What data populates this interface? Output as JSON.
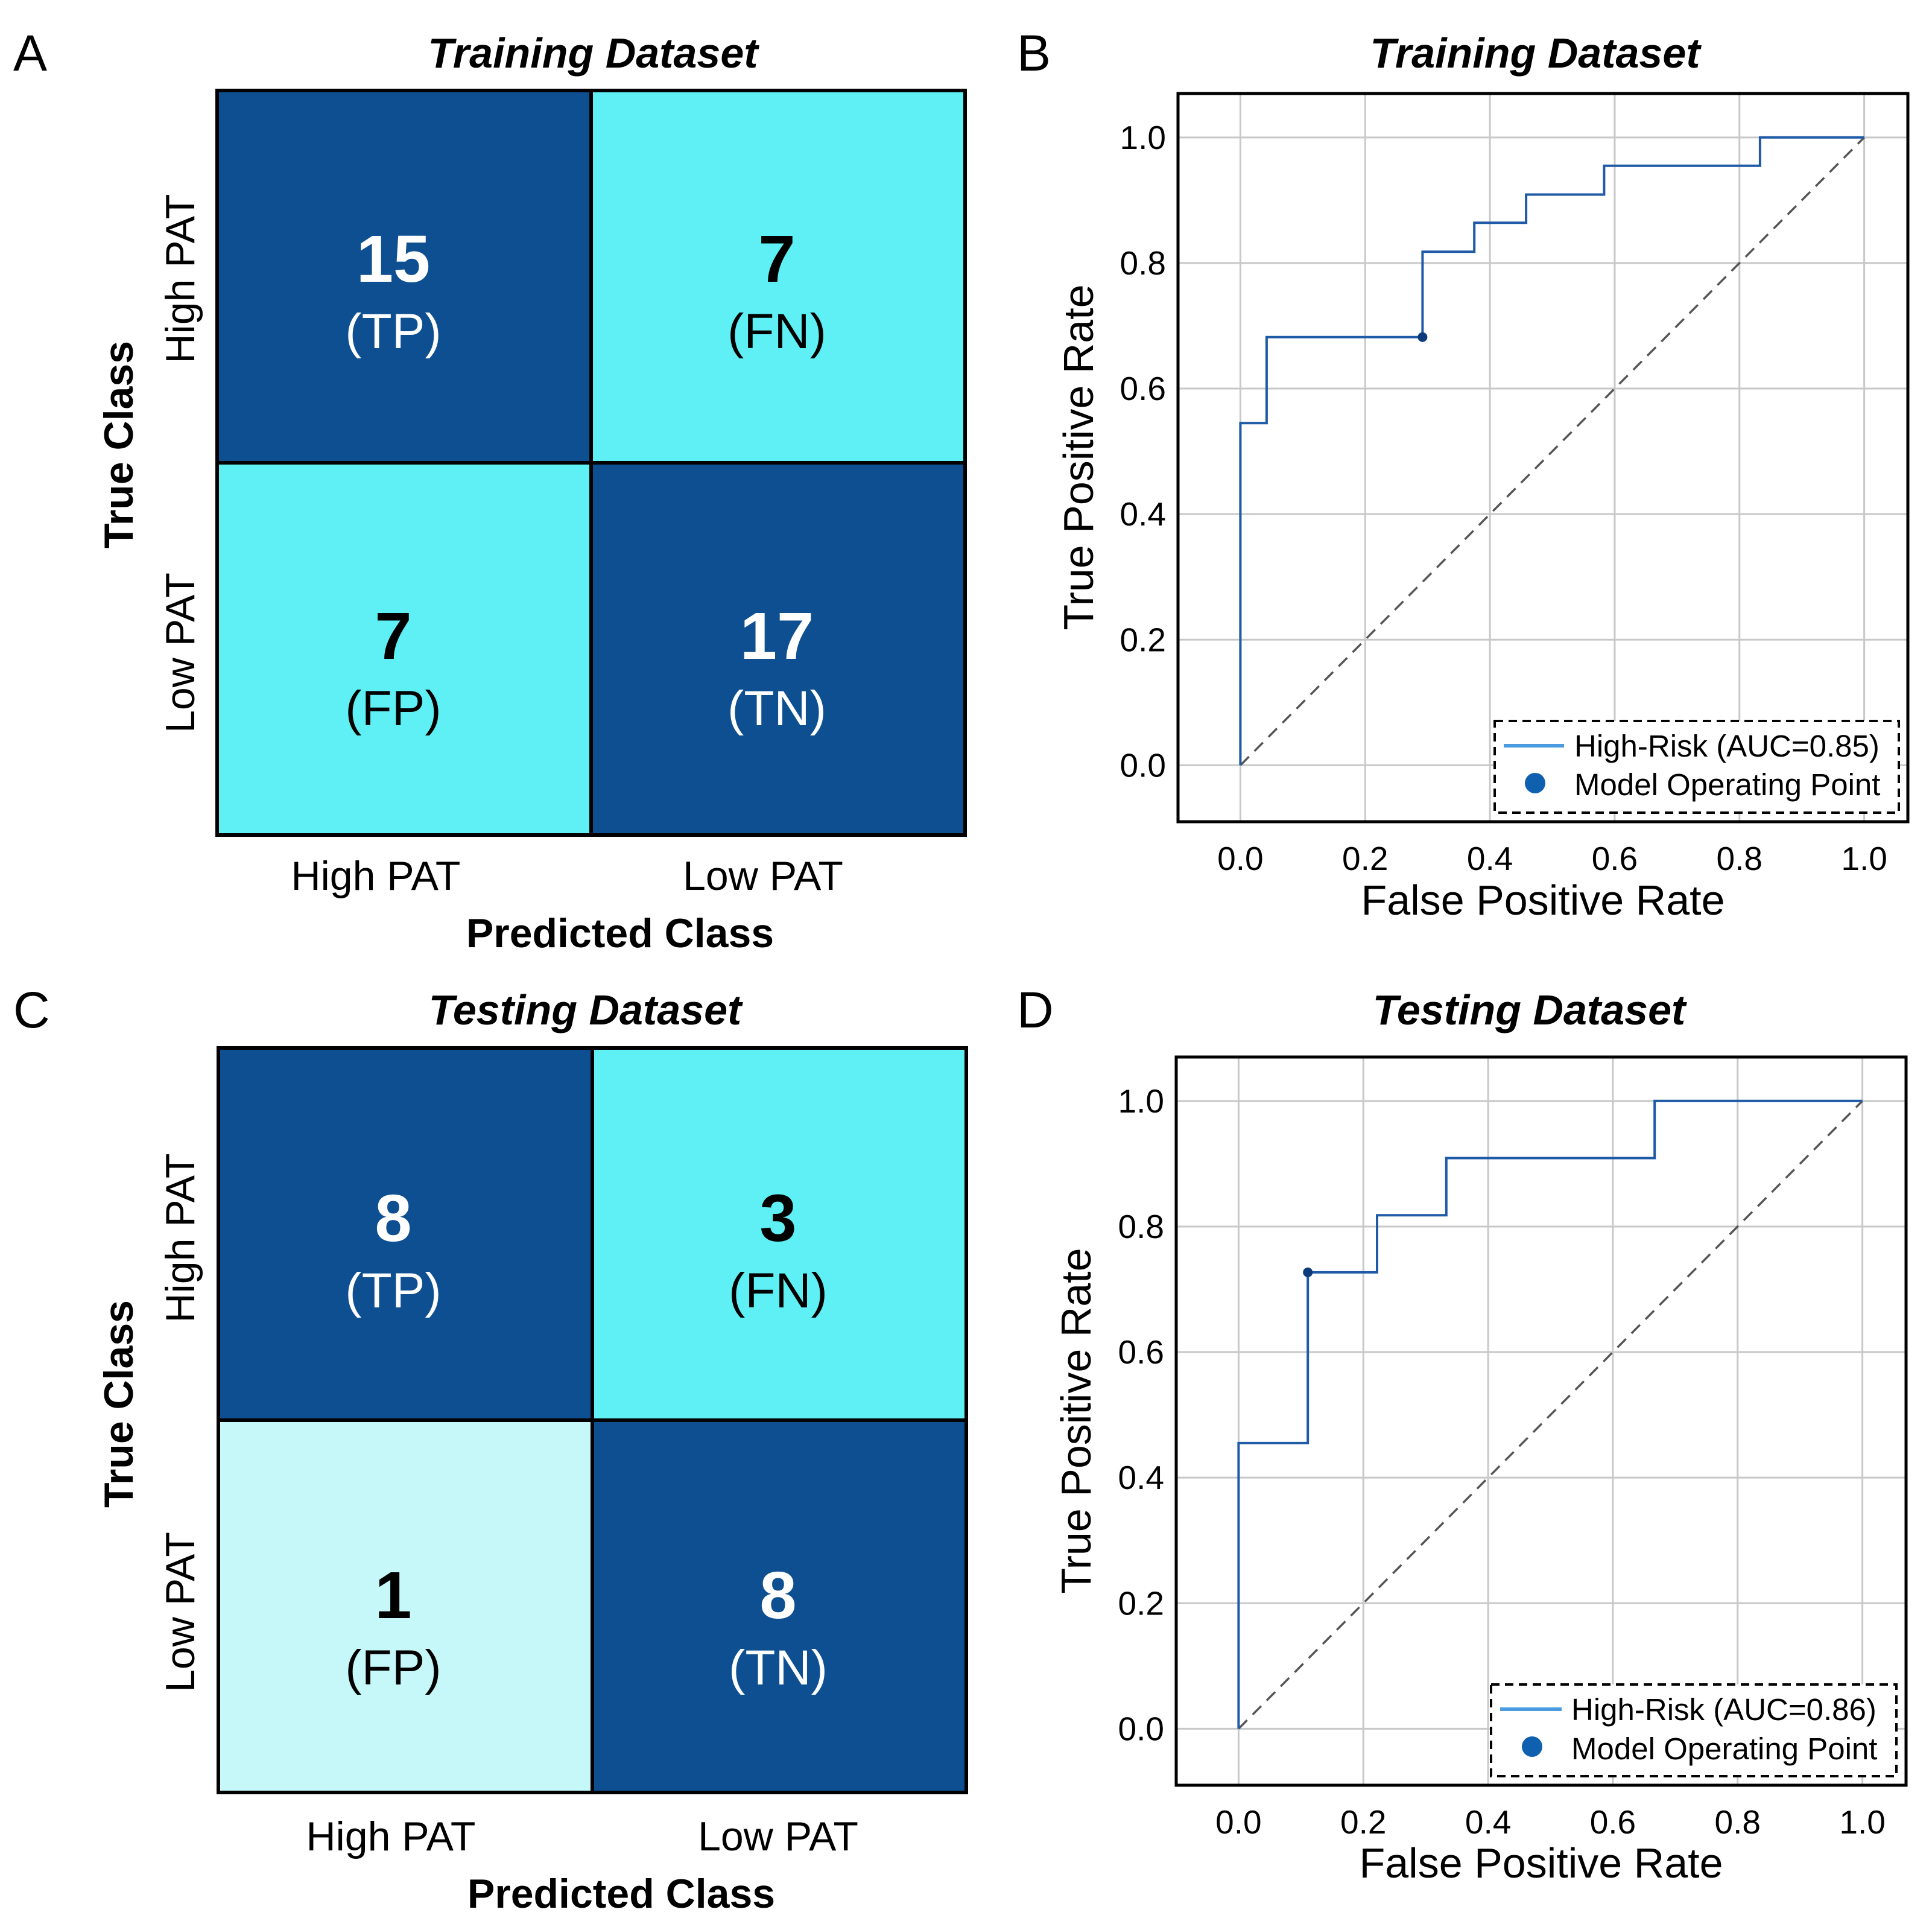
{
  "chart_data": [
    {
      "panel": "A",
      "type": "heatmap",
      "title": "Training Dataset",
      "xlabel": "Predicted Class",
      "ylabel": "True Class",
      "x_categories": [
        "High PAT",
        "Low PAT"
      ],
      "y_categories": [
        "High PAT",
        "Low PAT"
      ],
      "cells": [
        [
          {
            "value": "15",
            "label": "(TP)",
            "color": "#0d4f91"
          },
          {
            "value": "7",
            "label": "(FN)",
            "color": "#5ef0f5"
          }
        ],
        [
          {
            "value": "7",
            "label": "(FP)",
            "color": "#5ef0f5"
          },
          {
            "value": "17",
            "label": "(TN)",
            "color": "#0d4f91"
          }
        ]
      ]
    },
    {
      "panel": "B",
      "type": "line",
      "title": "Training Dataset",
      "xlabel": "False Positive Rate",
      "ylabel": "True Positive Rate",
      "xlim": [
        -0.1,
        1.07
      ],
      "ylim": [
        -0.09,
        1.07
      ],
      "xticks": [
        "0.0",
        "0.2",
        "0.4",
        "0.6",
        "0.8",
        "1.0"
      ],
      "yticks": [
        "0.0",
        "0.2",
        "0.4",
        "0.6",
        "0.8",
        "1.0"
      ],
      "grid": true,
      "legend_position": "bottom-right",
      "series": [
        {
          "name": "High-Risk (AUC=0.85)",
          "color": "#1f5aa6",
          "legend_color": "#4a9be0",
          "x": [
            0,
            0,
            0.042,
            0.042,
            0.292,
            0.292,
            0.375,
            0.375,
            0.458,
            0.458,
            0.583,
            0.583,
            0.833,
            0.833,
            1.0
          ],
          "y": [
            0,
            0.545,
            0.545,
            0.682,
            0.682,
            0.818,
            0.818,
            0.864,
            0.864,
            0.909,
            0.909,
            0.955,
            0.955,
            1.0,
            1.0
          ]
        }
      ],
      "reference_line": {
        "x": [
          0,
          1
        ],
        "y": [
          0,
          1
        ],
        "style": "dashed"
      },
      "operating_point": {
        "name": "Model Operating Point",
        "x": 0.292,
        "y": 0.682,
        "color": "#0d3a7a",
        "legend_color": "#1060b0"
      }
    },
    {
      "panel": "C",
      "type": "heatmap",
      "title": "Testing Dataset",
      "xlabel": "Predicted Class",
      "ylabel": "True Class",
      "x_categories": [
        "High PAT",
        "Low PAT"
      ],
      "y_categories": [
        "High PAT",
        "Low PAT"
      ],
      "cells": [
        [
          {
            "value": "8",
            "label": "(TP)",
            "color": "#0d4f91"
          },
          {
            "value": "3",
            "label": "(FN)",
            "color": "#5ef0f5"
          }
        ],
        [
          {
            "value": "1",
            "label": "(FP)",
            "color": "#c6f8fa"
          },
          {
            "value": "8",
            "label": "(TN)",
            "color": "#0d4f91"
          }
        ]
      ]
    },
    {
      "panel": "D",
      "type": "line",
      "title": "Testing Dataset",
      "xlabel": "False Positive Rate",
      "ylabel": "True Positive Rate",
      "xlim": [
        -0.1,
        1.07
      ],
      "ylim": [
        -0.09,
        1.07
      ],
      "xticks": [
        "0.0",
        "0.2",
        "0.4",
        "0.6",
        "0.8",
        "1.0"
      ],
      "yticks": [
        "0.0",
        "0.2",
        "0.4",
        "0.6",
        "0.8",
        "1.0"
      ],
      "grid": true,
      "legend_position": "bottom-right",
      "series": [
        {
          "name": "High-Risk (AUC=0.86)",
          "color": "#1f5aa6",
          "legend_color": "#4a9be0",
          "x": [
            0,
            0,
            0.111,
            0.111,
            0.222,
            0.222,
            0.333,
            0.333,
            0.667,
            0.667,
            1.0
          ],
          "y": [
            0,
            0.455,
            0.455,
            0.727,
            0.727,
            0.818,
            0.818,
            0.909,
            0.909,
            1.0,
            1.0
          ]
        }
      ],
      "reference_line": {
        "x": [
          0,
          1
        ],
        "y": [
          0,
          1
        ],
        "style": "dashed"
      },
      "operating_point": {
        "name": "Model Operating Point",
        "x": 0.111,
        "y": 0.727,
        "color": "#0d3a7a",
        "legend_color": "#1060b0"
      }
    }
  ]
}
